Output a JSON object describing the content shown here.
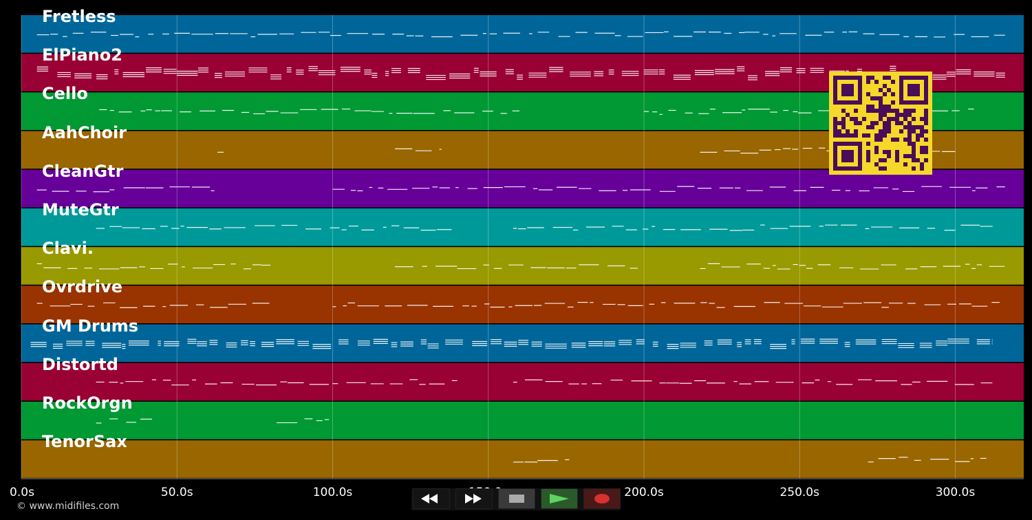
{
  "tracks": [
    {
      "name": "Fretless",
      "color": "#006699"
    },
    {
      "name": "ElPiano2",
      "color": "#990033"
    },
    {
      "name": "Cello",
      "color": "#009933"
    },
    {
      "name": "AahChoir",
      "color": "#996600"
    },
    {
      "name": "CleanGtr",
      "color": "#660099"
    },
    {
      "name": "MuteGtr",
      "color": "#009999"
    },
    {
      "name": "Clavi.",
      "color": "#999900"
    },
    {
      "name": "Ovrdrive",
      "color": "#993300"
    },
    {
      "name": "GM Drums",
      "color": "#006699"
    },
    {
      "name": "Distortd",
      "color": "#990033"
    },
    {
      "name": "RockOrgn",
      "color": "#009933"
    },
    {
      "name": "TenorSax",
      "color": "#996600"
    }
  ],
  "timeline": {
    "ticks": [
      "0.0s",
      "50.0s",
      "100.0s",
      "150.0s",
      "200.0s",
      "250.0s",
      "300.0s"
    ],
    "tick_seconds": [
      0,
      50,
      100,
      150,
      200,
      250,
      300
    ],
    "max_seconds": 322
  },
  "copyright": "© www.midifiles.com",
  "transport": {
    "rewind_icon": "rewind-icon",
    "fast_forward_icon": "fast-forward-icon",
    "stop_icon": "stop-icon",
    "play_icon": "play-icon",
    "record_icon": "record-icon"
  },
  "qr_icon": "qr-code-icon"
}
